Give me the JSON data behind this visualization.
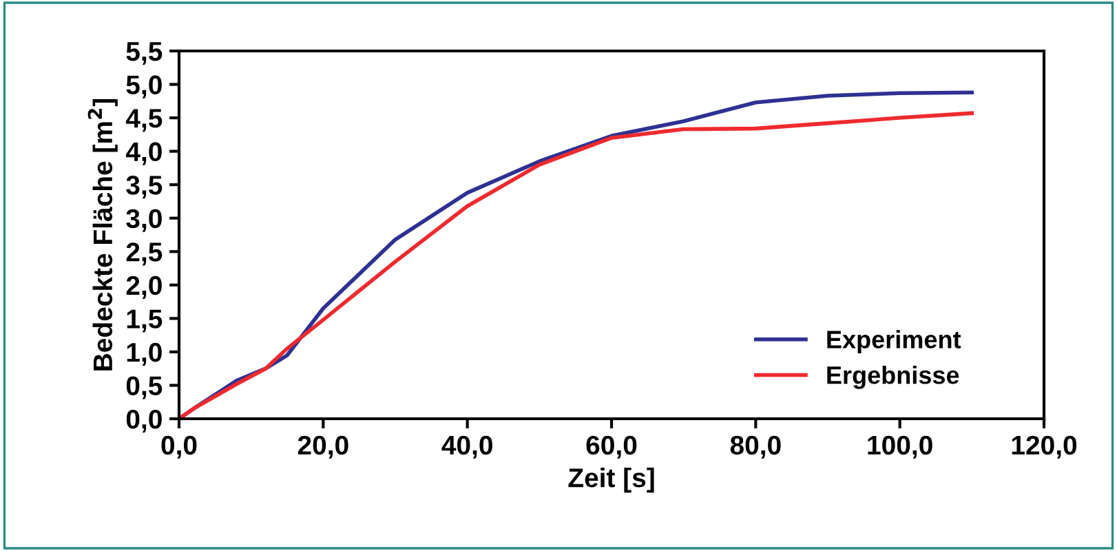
{
  "chart_data": {
    "type": "line",
    "xlabel": "Zeit [s]",
    "ylabel": "Bedeckte Fläche [m$^{2}$]",
    "x": [
      0,
      2,
      8,
      12,
      15,
      20,
      30,
      40,
      50,
      60,
      70,
      80,
      90,
      100,
      110
    ],
    "series": [
      {
        "name": "Experiment",
        "color": "#2e3192",
        "values": [
          0,
          0.15,
          0.57,
          0.75,
          0.95,
          1.65,
          2.68,
          3.38,
          3.85,
          4.23,
          4.45,
          4.73,
          4.83,
          4.87,
          4.88
        ]
      },
      {
        "name": "Ergebnisse",
        "color": "#ee2a2e",
        "values": [
          0,
          0.15,
          0.52,
          0.75,
          1.05,
          1.48,
          2.35,
          3.18,
          3.8,
          4.2,
          4.33,
          4.34,
          4.42,
          4.5,
          4.57
        ]
      }
    ],
    "xlim": [
      0,
      120
    ],
    "xticks": [
      {
        "value": 0,
        "label": "0,0"
      },
      {
        "value": 20,
        "label": "20,0"
      },
      {
        "value": 40,
        "label": "40,0"
      },
      {
        "value": 60,
        "label": "60,0"
      },
      {
        "value": 80,
        "label": "80,0"
      },
      {
        "value": 100,
        "label": "100,0"
      },
      {
        "value": 120,
        "label": "120,0"
      }
    ],
    "ylim": [
      0,
      5.5
    ],
    "yticks": [
      {
        "value": 0,
        "label": "0,0"
      },
      {
        "value": 0.5,
        "label": "0,5"
      },
      {
        "value": 1,
        "label": "1,0"
      },
      {
        "value": 1.5,
        "label": "1,5"
      },
      {
        "value": 2,
        "label": "2,0"
      },
      {
        "value": 2.5,
        "label": "2,5"
      },
      {
        "value": 3,
        "label": "3,0"
      },
      {
        "value": 3.5,
        "label": "3,5"
      },
      {
        "value": 4,
        "label": "4,0"
      },
      {
        "value": 4.5,
        "label": "4,5"
      },
      {
        "value": 5,
        "label": "5,0"
      },
      {
        "value": 5.5,
        "label": "5,5"
      }
    ],
    "grid": false,
    "legend": "bottom right",
    "marker": "none",
    "line_style": "solid"
  }
}
